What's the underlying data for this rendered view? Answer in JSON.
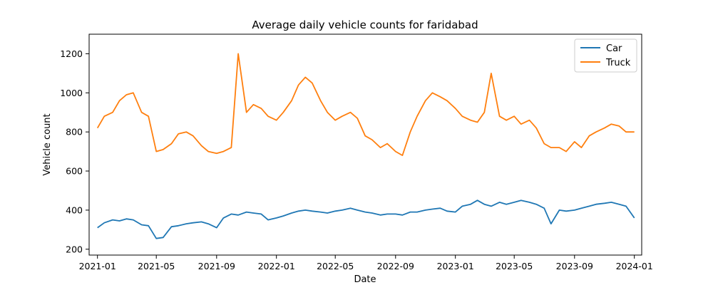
{
  "chart_data": {
    "type": "line",
    "title": "Average daily vehicle counts for faridabad",
    "xlabel": "Date",
    "ylabel": "Vehicle count",
    "xlim": [
      "2020-12-15",
      "2024-01-16"
    ],
    "ylim": [
      170,
      1300
    ],
    "x_ticks": [
      "2021-01",
      "2021-05",
      "2021-09",
      "2022-01",
      "2022-05",
      "2022-09",
      "2023-01",
      "2023-05",
      "2023-09",
      "2024-01"
    ],
    "y_ticks": [
      200,
      400,
      600,
      800,
      1000,
      1200
    ],
    "grid": false,
    "legend_position": "top-right",
    "series": [
      {
        "name": "Car",
        "color": "#1f77b4",
        "x": [
          "2021-01-01",
          "2021-01-15",
          "2021-02-01",
          "2021-02-15",
          "2021-03-01",
          "2021-03-15",
          "2021-04-01",
          "2021-04-15",
          "2021-05-01",
          "2021-05-15",
          "2021-06-01",
          "2021-06-15",
          "2021-07-01",
          "2021-07-15",
          "2021-08-01",
          "2021-08-15",
          "2021-09-01",
          "2021-09-15",
          "2021-10-01",
          "2021-10-15",
          "2021-11-01",
          "2021-11-15",
          "2021-12-01",
          "2021-12-15",
          "2022-01-01",
          "2022-01-15",
          "2022-02-01",
          "2022-02-15",
          "2022-03-01",
          "2022-03-15",
          "2022-04-01",
          "2022-04-15",
          "2022-05-01",
          "2022-05-15",
          "2022-06-01",
          "2022-06-15",
          "2022-07-01",
          "2022-07-15",
          "2022-08-01",
          "2022-08-15",
          "2022-09-01",
          "2022-09-15",
          "2022-10-01",
          "2022-10-15",
          "2022-11-01",
          "2022-11-15",
          "2022-12-01",
          "2022-12-15",
          "2023-01-01",
          "2023-01-15",
          "2023-02-01",
          "2023-02-15",
          "2023-03-01",
          "2023-03-15",
          "2023-04-01",
          "2023-04-15",
          "2023-05-01",
          "2023-05-15",
          "2023-06-01",
          "2023-06-15",
          "2023-07-01",
          "2023-07-15",
          "2023-08-01",
          "2023-08-15",
          "2023-09-01",
          "2023-09-15",
          "2023-10-01",
          "2023-10-15",
          "2023-11-01",
          "2023-11-15",
          "2023-12-01",
          "2023-12-15",
          "2024-01-01"
        ],
        "values": [
          310,
          335,
          350,
          345,
          355,
          350,
          325,
          320,
          255,
          260,
          315,
          320,
          330,
          335,
          340,
          330,
          310,
          360,
          380,
          375,
          390,
          385,
          380,
          350,
          360,
          370,
          385,
          395,
          400,
          395,
          390,
          385,
          395,
          400,
          410,
          400,
          390,
          385,
          375,
          380,
          380,
          375,
          390,
          390,
          400,
          405,
          410,
          395,
          390,
          420,
          430,
          450,
          430,
          420,
          440,
          430,
          440,
          450,
          440,
          430,
          410,
          330,
          400,
          395,
          400,
          410,
          420,
          430,
          435,
          440,
          430,
          420,
          360
        ]
      },
      {
        "name": "Truck",
        "color": "#ff7f0e",
        "x": [
          "2021-01-01",
          "2021-01-15",
          "2021-02-01",
          "2021-02-15",
          "2021-03-01",
          "2021-03-15",
          "2021-04-01",
          "2021-04-15",
          "2021-05-01",
          "2021-05-15",
          "2021-06-01",
          "2021-06-15",
          "2021-07-01",
          "2021-07-15",
          "2021-08-01",
          "2021-08-15",
          "2021-09-01",
          "2021-09-15",
          "2021-10-01",
          "2021-10-15",
          "2021-11-01",
          "2021-11-15",
          "2021-12-01",
          "2021-12-15",
          "2022-01-01",
          "2022-01-15",
          "2022-02-01",
          "2022-02-15",
          "2022-03-01",
          "2022-03-15",
          "2022-04-01",
          "2022-04-15",
          "2022-05-01",
          "2022-05-15",
          "2022-06-01",
          "2022-06-15",
          "2022-07-01",
          "2022-07-15",
          "2022-08-01",
          "2022-08-15",
          "2022-09-01",
          "2022-09-15",
          "2022-10-01",
          "2022-10-15",
          "2022-11-01",
          "2022-11-15",
          "2022-12-01",
          "2022-12-15",
          "2023-01-01",
          "2023-01-15",
          "2023-02-01",
          "2023-02-15",
          "2023-03-01",
          "2023-03-15",
          "2023-04-01",
          "2023-04-15",
          "2023-05-01",
          "2023-05-15",
          "2023-06-01",
          "2023-06-15",
          "2023-07-01",
          "2023-07-15",
          "2023-08-01",
          "2023-08-15",
          "2023-09-01",
          "2023-09-15",
          "2023-10-01",
          "2023-10-15",
          "2023-11-01",
          "2023-11-15",
          "2023-12-01",
          "2023-12-15",
          "2024-01-01"
        ],
        "values": [
          820,
          880,
          900,
          960,
          990,
          1000,
          900,
          880,
          700,
          710,
          740,
          790,
          800,
          780,
          730,
          700,
          690,
          700,
          720,
          1200,
          900,
          940,
          920,
          880,
          860,
          900,
          960,
          1040,
          1080,
          1050,
          960,
          900,
          860,
          880,
          900,
          870,
          780,
          760,
          720,
          740,
          700,
          680,
          800,
          880,
          960,
          1000,
          980,
          960,
          920,
          880,
          860,
          850,
          900,
          1100,
          880,
          860,
          880,
          840,
          860,
          820,
          740,
          720,
          720,
          700,
          750,
          720,
          780,
          800,
          820,
          840,
          830,
          800,
          800
        ]
      }
    ]
  }
}
